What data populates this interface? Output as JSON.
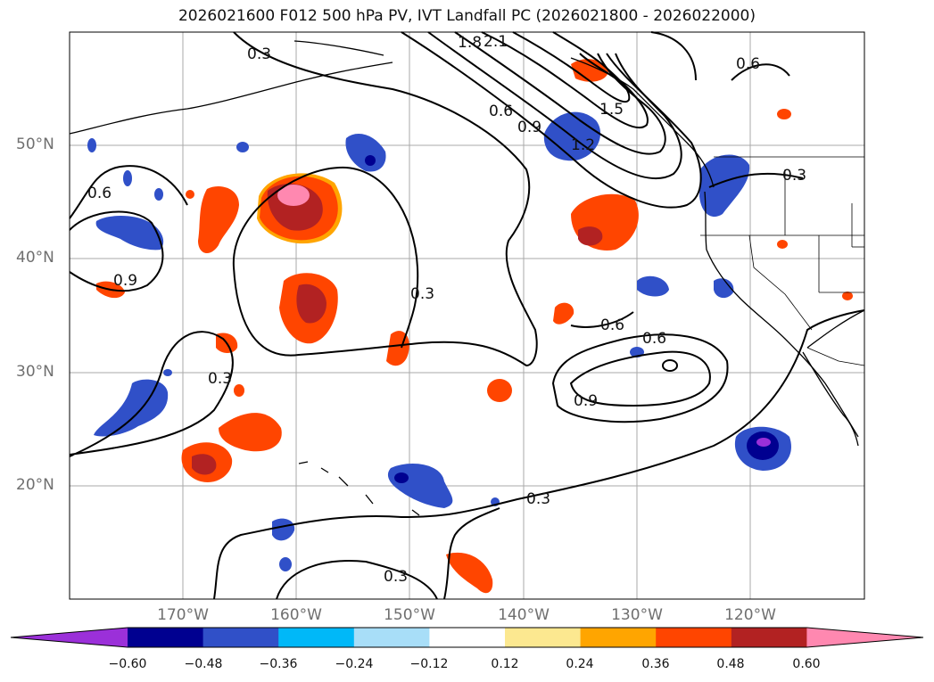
{
  "title": "2026021600 F012 500 hPa PV, IVT Landfall PC (2026021800 - 2026022000)",
  "latitude_labels": [
    "50°N",
    "40°N",
    "30°N",
    "20°N"
  ],
  "longitude_labels": [
    "170°W",
    "160°W",
    "150°W",
    "140°W",
    "130°W",
    "120°W"
  ],
  "contour_labels": [
    "0.3",
    "0.6",
    "0.9",
    "1.2",
    "1.5",
    "1.8",
    "2.1"
  ],
  "colorbar": {
    "ticks": [
      "−0.60",
      "−0.48",
      "−0.36",
      "−0.24",
      "−0.12",
      "0.12",
      "0.24",
      "0.36",
      "0.48",
      "0.60"
    ],
    "colors": [
      "#9b30d9",
      "#000090",
      "#3050c8",
      "#00b8f8",
      "#a8def8",
      "#ffffff",
      "#fce890",
      "#ffa500",
      "#ff4500",
      "#b22222",
      "#ff88b0"
    ]
  },
  "colors": {
    "gridline": "#a8a8a8",
    "coastline": "#000000",
    "contour": "#000000",
    "axis_label": "#6f6f6f"
  }
}
